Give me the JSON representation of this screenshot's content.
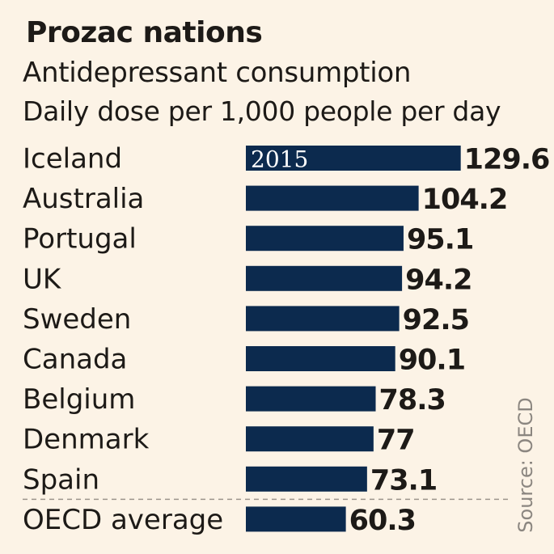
{
  "chart_data": {
    "type": "bar",
    "orientation": "horizontal",
    "title": "Prozac nations",
    "subtitle": "Antidepressant consumption",
    "unit_label": "Daily dose per 1,000 people per day",
    "series_label": "2015",
    "source": "Source: OECD",
    "categories": [
      "Iceland",
      "Australia",
      "Portugal",
      "UK",
      "Sweden",
      "Canada",
      "Belgium",
      "Denmark",
      "Spain",
      "OECD average"
    ],
    "values": [
      129.6,
      104.2,
      95.1,
      94.2,
      92.5,
      90.1,
      78.3,
      77,
      73.1,
      60.3
    ],
    "value_labels": [
      "129.6",
      "104.2",
      "95.1",
      "94.2",
      "92.5",
      "90.1",
      "78.3",
      "77",
      "73.1",
      "60.3"
    ],
    "bar_color": "#0c2a4e",
    "grid": false,
    "separator_before": "OECD average"
  }
}
